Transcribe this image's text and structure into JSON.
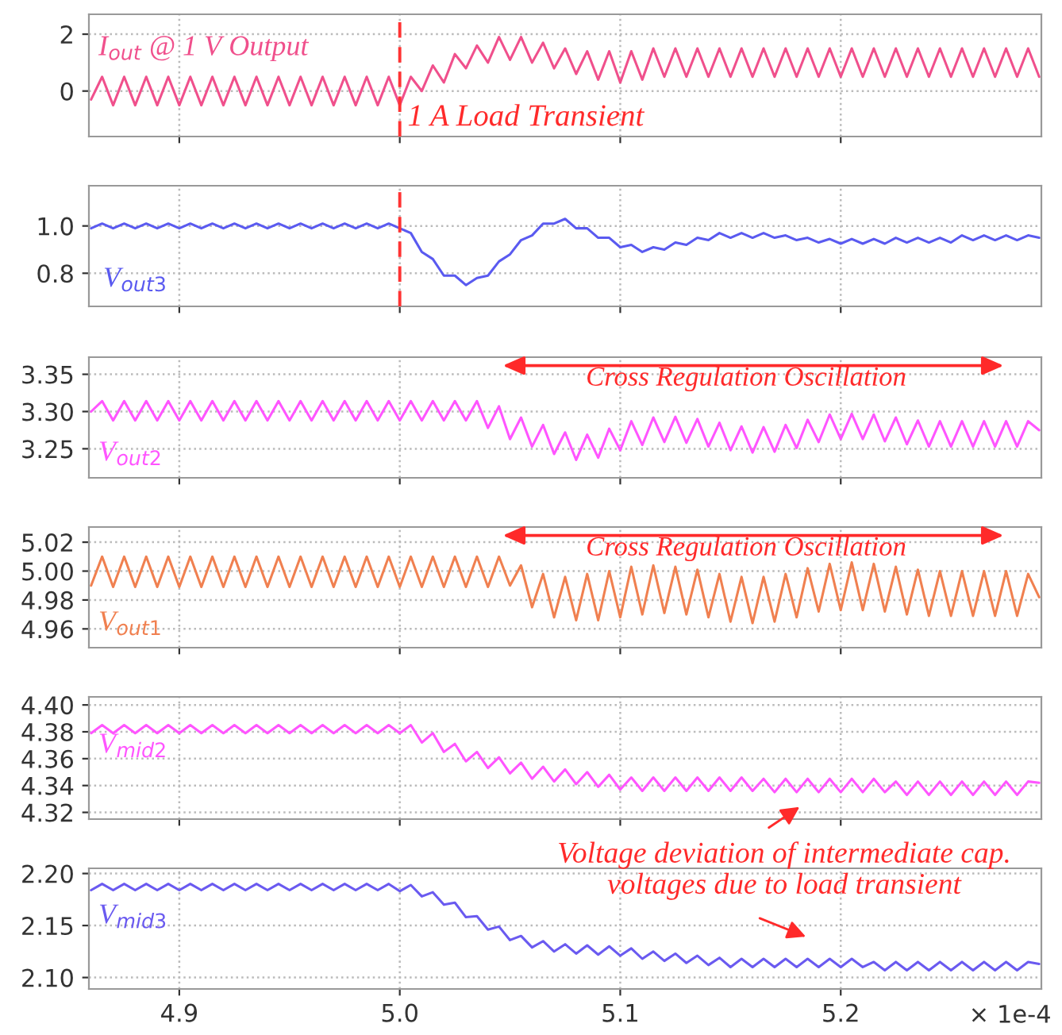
{
  "chart_data": [
    {
      "type": "line",
      "x": [
        4.86,
        4.865,
        4.87,
        4.875,
        4.88,
        4.885,
        4.89,
        4.895,
        4.9,
        4.905,
        4.91,
        4.915,
        4.92,
        4.925,
        4.93,
        4.935,
        4.94,
        4.945,
        4.95,
        4.955,
        4.96,
        4.965,
        4.97,
        4.975,
        4.98,
        4.985,
        4.99,
        4.995,
        5.0,
        5.005,
        5.01,
        5.015,
        5.02,
        5.025,
        5.03,
        5.035,
        5.04,
        5.045,
        5.05,
        5.055,
        5.06,
        5.065,
        5.07,
        5.075,
        5.08,
        5.085,
        5.09,
        5.095,
        5.1,
        5.105,
        5.11,
        5.115,
        5.12,
        5.125,
        5.13,
        5.135,
        5.14,
        5.145,
        5.15,
        5.155,
        5.16,
        5.165,
        5.17,
        5.175,
        5.18,
        5.185,
        5.19,
        5.195,
        5.2,
        5.205,
        5.21,
        5.215,
        5.22,
        5.225,
        5.23,
        5.235,
        5.24,
        5.245,
        5.25,
        5.255,
        5.26,
        5.265,
        5.27,
        5.275,
        5.28,
        5.285,
        5.29
      ],
      "series": [
        {
          "name": "I$_{out}$ @ 1 V Output",
          "color": "#f0508c",
          "values": [
            -0.3,
            0.5,
            -0.5,
            0.5,
            -0.5,
            0.5,
            -0.5,
            0.5,
            -0.5,
            0.5,
            -0.5,
            0.5,
            -0.5,
            0.5,
            -0.5,
            0.5,
            -0.5,
            0.5,
            -0.5,
            0.5,
            -0.5,
            0.5,
            -0.5,
            0.5,
            -0.5,
            0.5,
            -0.5,
            0.5,
            -0.5,
            0.5,
            0.0,
            0.9,
            0.3,
            1.3,
            0.8,
            1.6,
            1.0,
            1.9,
            1.1,
            1.9,
            1.0,
            1.7,
            0.8,
            1.5,
            0.6,
            1.4,
            0.4,
            1.4,
            0.3,
            1.4,
            0.4,
            1.5,
            0.5,
            1.5,
            0.5,
            1.5,
            0.5,
            1.5,
            0.5,
            1.5,
            0.5,
            1.5,
            0.5,
            1.5,
            0.5,
            1.5,
            0.5,
            1.5,
            0.5,
            1.5,
            0.5,
            1.5,
            0.5,
            1.5,
            0.5,
            1.5,
            0.5,
            1.5,
            0.5,
            1.5,
            0.5,
            1.5,
            0.5,
            1.5,
            0.5,
            1.5,
            0.5
          ]
        }
      ],
      "xlim": [
        4.859,
        5.291
      ],
      "xticks": [
        {
          "value": 4.9,
          "label": null
        },
        {
          "value": 5.0,
          "label": null
        },
        {
          "value": 5.1,
          "label": null
        },
        {
          "value": 5.2,
          "label": null
        }
      ],
      "ylim": [
        -1.6,
        2.7
      ],
      "yticks": [
        0,
        2
      ],
      "grid": true,
      "legend": false,
      "tick_labels": "y",
      "ref_lines": [
        {
          "axis": "x",
          "value": 5.0,
          "color": "#ff3333",
          "line_style": "dashed"
        }
      ],
      "annotations": [
        "1 A Load Transient"
      ]
    },
    {
      "type": "line",
      "x": [
        4.86,
        4.865,
        4.87,
        4.875,
        4.88,
        4.885,
        4.89,
        4.895,
        4.9,
        4.905,
        4.91,
        4.915,
        4.92,
        4.925,
        4.93,
        4.935,
        4.94,
        4.945,
        4.95,
        4.955,
        4.96,
        4.965,
        4.97,
        4.975,
        4.98,
        4.985,
        4.99,
        4.995,
        5.0,
        5.005,
        5.01,
        5.015,
        5.02,
        5.025,
        5.03,
        5.035,
        5.04,
        5.045,
        5.05,
        5.055,
        5.06,
        5.065,
        5.07,
        5.075,
        5.08,
        5.085,
        5.09,
        5.095,
        5.1,
        5.105,
        5.11,
        5.115,
        5.12,
        5.125,
        5.13,
        5.135,
        5.14,
        5.145,
        5.15,
        5.155,
        5.16,
        5.165,
        5.17,
        5.175,
        5.18,
        5.185,
        5.19,
        5.195,
        5.2,
        5.205,
        5.21,
        5.215,
        5.22,
        5.225,
        5.23,
        5.235,
        5.24,
        5.245,
        5.25,
        5.255,
        5.26,
        5.265,
        5.27,
        5.275,
        5.28,
        5.285,
        5.29
      ],
      "series": [
        {
          "name": "V$_{out3}$",
          "color": "#5a5af0",
          "values": [
            0.99,
            1.01,
            0.99,
            1.01,
            0.99,
            1.01,
            0.99,
            1.01,
            0.99,
            1.01,
            0.99,
            1.01,
            0.99,
            1.01,
            0.99,
            1.01,
            0.99,
            1.01,
            0.99,
            1.01,
            0.99,
            1.01,
            0.99,
            1.01,
            0.99,
            1.01,
            0.99,
            1.01,
            0.99,
            0.97,
            0.89,
            0.86,
            0.79,
            0.79,
            0.75,
            0.78,
            0.79,
            0.85,
            0.88,
            0.94,
            0.96,
            1.01,
            1.01,
            1.03,
            0.99,
            0.99,
            0.95,
            0.95,
            0.91,
            0.92,
            0.89,
            0.91,
            0.9,
            0.93,
            0.92,
            0.95,
            0.94,
            0.97,
            0.95,
            0.97,
            0.95,
            0.97,
            0.95,
            0.96,
            0.94,
            0.95,
            0.93,
            0.945,
            0.925,
            0.945,
            0.925,
            0.945,
            0.925,
            0.95,
            0.93,
            0.95,
            0.93,
            0.95,
            0.93,
            0.96,
            0.94,
            0.96,
            0.94,
            0.96,
            0.94,
            0.96,
            0.95
          ]
        }
      ],
      "xlim": [
        4.859,
        5.291
      ],
      "xticks": [
        {
          "value": 4.9,
          "label": null
        },
        {
          "value": 5.0,
          "label": null
        },
        {
          "value": 5.1,
          "label": null
        },
        {
          "value": 5.2,
          "label": null
        }
      ],
      "ylim": [
        0.66,
        1.17
      ],
      "yticks": [
        {
          "value": 0.8,
          "label": "0.8"
        },
        {
          "value": 1.0,
          "label": "1.0"
        }
      ],
      "grid": true,
      "legend": false,
      "tick_labels": "y",
      "ref_lines": [
        {
          "axis": "x",
          "value": 5.0,
          "color": "#ff3333",
          "line_style": "dashed"
        }
      ]
    },
    {
      "type": "line",
      "x": [
        4.86,
        4.865,
        4.87,
        4.875,
        4.88,
        4.885,
        4.89,
        4.895,
        4.9,
        4.905,
        4.91,
        4.915,
        4.92,
        4.925,
        4.93,
        4.935,
        4.94,
        4.945,
        4.95,
        4.955,
        4.96,
        4.965,
        4.97,
        4.975,
        4.98,
        4.985,
        4.99,
        4.995,
        5.0,
        5.005,
        5.01,
        5.015,
        5.02,
        5.025,
        5.03,
        5.035,
        5.04,
        5.045,
        5.05,
        5.055,
        5.06,
        5.065,
        5.07,
        5.075,
        5.08,
        5.085,
        5.09,
        5.095,
        5.1,
        5.105,
        5.11,
        5.115,
        5.12,
        5.125,
        5.13,
        5.135,
        5.14,
        5.145,
        5.15,
        5.155,
        5.16,
        5.165,
        5.17,
        5.175,
        5.18,
        5.185,
        5.19,
        5.195,
        5.2,
        5.205,
        5.21,
        5.215,
        5.22,
        5.225,
        5.23,
        5.235,
        5.24,
        5.245,
        5.25,
        5.255,
        5.26,
        5.265,
        5.27,
        5.275,
        5.28,
        5.285,
        5.29
      ],
      "series": [
        {
          "name": "V$_{out2}$",
          "color": "#ff55ff",
          "values": [
            3.3,
            3.314,
            3.288,
            3.314,
            3.288,
            3.314,
            3.288,
            3.314,
            3.288,
            3.314,
            3.288,
            3.314,
            3.288,
            3.314,
            3.288,
            3.314,
            3.288,
            3.314,
            3.288,
            3.314,
            3.288,
            3.314,
            3.288,
            3.314,
            3.288,
            3.314,
            3.288,
            3.314,
            3.288,
            3.314,
            3.288,
            3.314,
            3.288,
            3.314,
            3.288,
            3.314,
            3.278,
            3.307,
            3.263,
            3.292,
            3.253,
            3.282,
            3.243,
            3.272,
            3.235,
            3.269,
            3.238,
            3.277,
            3.248,
            3.287,
            3.255,
            3.292,
            3.259,
            3.293,
            3.258,
            3.29,
            3.253,
            3.285,
            3.248,
            3.28,
            3.245,
            3.279,
            3.246,
            3.282,
            3.251,
            3.289,
            3.259,
            3.296,
            3.263,
            3.297,
            3.263,
            3.296,
            3.26,
            3.292,
            3.256,
            3.288,
            3.253,
            3.287,
            3.253,
            3.287,
            3.253,
            3.287,
            3.253,
            3.287,
            3.253,
            3.287,
            3.275
          ]
        }
      ],
      "xlim": [
        4.859,
        5.291
      ],
      "xticks": [
        {
          "value": 4.9,
          "label": null
        },
        {
          "value": 5.0,
          "label": null
        },
        {
          "value": 5.1,
          "label": null
        },
        {
          "value": 5.2,
          "label": null
        }
      ],
      "ylim": [
        3.211,
        3.373
      ],
      "yticks": [
        {
          "value": 3.25,
          "label": "3.25"
        },
        {
          "value": 3.3,
          "label": "3.30"
        },
        {
          "value": 3.35,
          "label": "3.35"
        }
      ],
      "grid": true,
      "legend": false,
      "tick_labels": "y",
      "annotations": [
        "Cross Regulation Oscillation"
      ]
    },
    {
      "type": "line",
      "x": [
        4.86,
        4.865,
        4.87,
        4.875,
        4.88,
        4.885,
        4.89,
        4.895,
        4.9,
        4.905,
        4.91,
        4.915,
        4.92,
        4.925,
        4.93,
        4.935,
        4.94,
        4.945,
        4.95,
        4.955,
        4.96,
        4.965,
        4.97,
        4.975,
        4.98,
        4.985,
        4.99,
        4.995,
        5.0,
        5.005,
        5.01,
        5.015,
        5.02,
        5.025,
        5.03,
        5.035,
        5.04,
        5.045,
        5.05,
        5.055,
        5.06,
        5.065,
        5.07,
        5.075,
        5.08,
        5.085,
        5.09,
        5.095,
        5.1,
        5.105,
        5.11,
        5.115,
        5.12,
        5.125,
        5.13,
        5.135,
        5.14,
        5.145,
        5.15,
        5.155,
        5.16,
        5.165,
        5.17,
        5.175,
        5.18,
        5.185,
        5.19,
        5.195,
        5.2,
        5.205,
        5.21,
        5.215,
        5.22,
        5.225,
        5.23,
        5.235,
        5.24,
        5.245,
        5.25,
        5.255,
        5.26,
        5.265,
        5.27,
        5.275,
        5.28,
        5.285,
        5.29
      ],
      "series": [
        {
          "name": "V$_{out1}$",
          "color": "#f08050",
          "values": [
            4.99,
            5.01,
            4.989,
            5.01,
            4.989,
            5.01,
            4.989,
            5.01,
            4.989,
            5.01,
            4.989,
            5.01,
            4.989,
            5.01,
            4.989,
            5.01,
            4.989,
            5.01,
            4.989,
            5.01,
            4.989,
            5.01,
            4.989,
            5.01,
            4.989,
            5.01,
            4.989,
            5.01,
            4.989,
            5.01,
            4.989,
            5.01,
            4.989,
            5.01,
            4.989,
            5.01,
            4.989,
            5.01,
            4.99,
            5.004,
            4.975,
            4.998,
            4.968,
            4.996,
            4.966,
            4.998,
            4.966,
            5.0,
            4.968,
            5.003,
            4.97,
            5.004,
            4.971,
            5.003,
            4.97,
            5.001,
            4.968,
            4.998,
            4.965,
            4.996,
            4.964,
            4.996,
            4.965,
            4.998,
            4.968,
            5.002,
            4.972,
            5.005,
            4.973,
            5.006,
            4.973,
            5.005,
            4.972,
            5.003,
            4.97,
            5.001,
            4.969,
            5.0,
            4.969,
            5.0,
            4.969,
            5.0,
            4.969,
            5.0,
            4.969,
            4.998,
            4.982
          ]
        }
      ],
      "xlim": [
        4.859,
        5.291
      ],
      "xticks": [
        {
          "value": 4.9,
          "label": null
        },
        {
          "value": 5.0,
          "label": null
        },
        {
          "value": 5.1,
          "label": null
        },
        {
          "value": 5.2,
          "label": null
        }
      ],
      "ylim": [
        4.947,
        5.0305
      ],
      "yticks": [
        {
          "value": 4.96,
          "label": "4.96"
        },
        {
          "value": 4.98,
          "label": "4.98"
        },
        {
          "value": 5.0,
          "label": "5.00"
        },
        {
          "value": 5.02,
          "label": "5.02"
        }
      ],
      "grid": true,
      "legend": false,
      "tick_labels": "y",
      "annotations": [
        "Cross Regulation Oscillation"
      ]
    },
    {
      "type": "line",
      "x": [
        4.86,
        4.865,
        4.87,
        4.875,
        4.88,
        4.885,
        4.89,
        4.895,
        4.9,
        4.905,
        4.91,
        4.915,
        4.92,
        4.925,
        4.93,
        4.935,
        4.94,
        4.945,
        4.95,
        4.955,
        4.96,
        4.965,
        4.97,
        4.975,
        4.98,
        4.985,
        4.99,
        4.995,
        5.0,
        5.005,
        5.01,
        5.015,
        5.02,
        5.025,
        5.03,
        5.035,
        5.04,
        5.045,
        5.05,
        5.055,
        5.06,
        5.065,
        5.07,
        5.075,
        5.08,
        5.085,
        5.09,
        5.095,
        5.1,
        5.105,
        5.11,
        5.115,
        5.12,
        5.125,
        5.13,
        5.135,
        5.14,
        5.145,
        5.15,
        5.155,
        5.16,
        5.165,
        5.17,
        5.175,
        5.18,
        5.185,
        5.19,
        5.195,
        5.2,
        5.205,
        5.21,
        5.215,
        5.22,
        5.225,
        5.23,
        5.235,
        5.24,
        5.245,
        5.25,
        5.255,
        5.26,
        5.265,
        5.27,
        5.275,
        5.28,
        5.285,
        5.29
      ],
      "series": [
        {
          "name": "V$_{mid2}$",
          "color": "#ff55ff",
          "values": [
            4.379,
            4.385,
            4.379,
            4.385,
            4.379,
            4.385,
            4.379,
            4.385,
            4.379,
            4.385,
            4.379,
            4.385,
            4.379,
            4.385,
            4.379,
            4.385,
            4.379,
            4.385,
            4.379,
            4.385,
            4.379,
            4.385,
            4.379,
            4.385,
            4.379,
            4.385,
            4.379,
            4.385,
            4.379,
            4.385,
            4.372,
            4.379,
            4.365,
            4.371,
            4.358,
            4.365,
            4.353,
            4.361,
            4.349,
            4.357,
            4.345,
            4.354,
            4.343,
            4.352,
            4.341,
            4.35,
            4.339,
            4.348,
            4.337,
            4.346,
            4.336,
            4.346,
            4.336,
            4.346,
            4.336,
            4.346,
            4.336,
            4.346,
            4.336,
            4.346,
            4.336,
            4.345,
            4.335,
            4.345,
            4.335,
            4.345,
            4.335,
            4.345,
            4.335,
            4.345,
            4.335,
            4.345,
            4.335,
            4.343,
            4.333,
            4.343,
            4.333,
            4.343,
            4.333,
            4.343,
            4.333,
            4.343,
            4.333,
            4.343,
            4.333,
            4.343,
            4.342
          ]
        }
      ],
      "xlim": [
        4.859,
        5.291
      ],
      "xticks": [
        {
          "value": 4.9,
          "label": null
        },
        {
          "value": 5.0,
          "label": null
        },
        {
          "value": 5.1,
          "label": null
        },
        {
          "value": 5.2,
          "label": null
        }
      ],
      "ylim": [
        4.315,
        4.406
      ],
      "yticks": [
        {
          "value": 4.32,
          "label": "4.32"
        },
        {
          "value": 4.34,
          "label": "4.34"
        },
        {
          "value": 4.36,
          "label": "4.36"
        },
        {
          "value": 4.38,
          "label": "4.38"
        },
        {
          "value": 4.4,
          "label": "4.40"
        }
      ],
      "grid": true,
      "legend": false,
      "tick_labels": "y"
    },
    {
      "type": "line",
      "x": [
        4.86,
        4.865,
        4.87,
        4.875,
        4.88,
        4.885,
        4.89,
        4.895,
        4.9,
        4.905,
        4.91,
        4.915,
        4.92,
        4.925,
        4.93,
        4.935,
        4.94,
        4.945,
        4.95,
        4.955,
        4.96,
        4.965,
        4.97,
        4.975,
        4.98,
        4.985,
        4.99,
        4.995,
        5.0,
        5.005,
        5.01,
        5.015,
        5.02,
        5.025,
        5.03,
        5.035,
        5.04,
        5.045,
        5.05,
        5.055,
        5.06,
        5.065,
        5.07,
        5.075,
        5.08,
        5.085,
        5.09,
        5.095,
        5.1,
        5.105,
        5.11,
        5.115,
        5.12,
        5.125,
        5.13,
        5.135,
        5.14,
        5.145,
        5.15,
        5.155,
        5.16,
        5.165,
        5.17,
        5.175,
        5.18,
        5.185,
        5.19,
        5.195,
        5.2,
        5.205,
        5.21,
        5.215,
        5.22,
        5.225,
        5.23,
        5.235,
        5.24,
        5.245,
        5.25,
        5.255,
        5.26,
        5.265,
        5.27,
        5.275,
        5.28,
        5.285,
        5.29
      ],
      "series": [
        {
          "name": "V$_{mid3}$",
          "color": "#6a5af0",
          "values": [
            2.184,
            2.19,
            2.184,
            2.19,
            2.184,
            2.19,
            2.184,
            2.19,
            2.184,
            2.19,
            2.184,
            2.19,
            2.184,
            2.19,
            2.184,
            2.19,
            2.184,
            2.19,
            2.184,
            2.19,
            2.184,
            2.19,
            2.184,
            2.19,
            2.184,
            2.19,
            2.184,
            2.19,
            2.183,
            2.189,
            2.178,
            2.182,
            2.17,
            2.172,
            2.158,
            2.159,
            2.146,
            2.149,
            2.136,
            2.14,
            2.129,
            2.135,
            2.125,
            2.132,
            2.123,
            2.131,
            2.122,
            2.13,
            2.121,
            2.128,
            2.118,
            2.125,
            2.116,
            2.123,
            2.114,
            2.121,
            2.112,
            2.119,
            2.11,
            2.118,
            2.11,
            2.118,
            2.11,
            2.118,
            2.11,
            2.118,
            2.11,
            2.118,
            2.11,
            2.118,
            2.11,
            2.115,
            2.107,
            2.115,
            2.107,
            2.115,
            2.107,
            2.115,
            2.107,
            2.115,
            2.107,
            2.115,
            2.107,
            2.115,
            2.107,
            2.115,
            2.113
          ]
        }
      ],
      "xlim": [
        4.859,
        5.291
      ],
      "xticks": [
        {
          "value": 4.9,
          "label": "4.9"
        },
        {
          "value": 5.0,
          "label": "5.0"
        },
        {
          "value": 5.1,
          "label": "5.1"
        },
        {
          "value": 5.2,
          "label": "5.2"
        }
      ],
      "ylim": [
        2.089,
        2.205
      ],
      "yticks": [
        {
          "value": 2.1,
          "label": "2.10"
        },
        {
          "value": 2.15,
          "label": "2.15"
        },
        {
          "value": 2.2,
          "label": "2.20"
        }
      ],
      "grid": true,
      "legend": false,
      "annotations": [
        "Voltage deviation of intermediate cap.\nvoltages due to load transient",
        "× 1e-4"
      ]
    }
  ]
}
